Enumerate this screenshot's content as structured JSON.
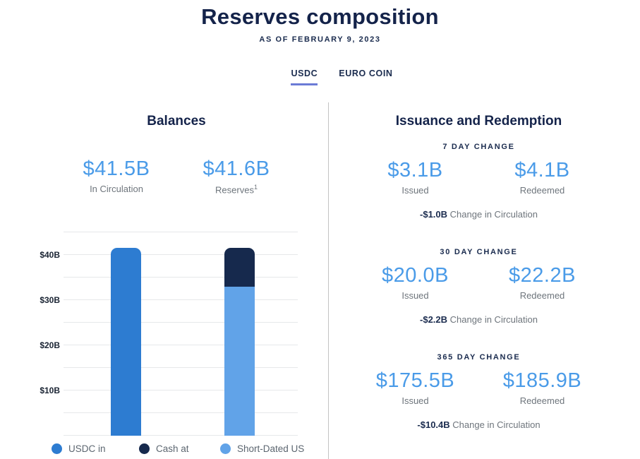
{
  "page": {
    "title": "Reserves composition",
    "as_of": "AS OF FEBRUARY 9, 2023"
  },
  "tabs": [
    {
      "label": "USDC",
      "active": true
    },
    {
      "label": "EURO COIN",
      "active": false
    }
  ],
  "balances": {
    "heading": "Balances",
    "stats": [
      {
        "value": "$41.5B",
        "label": "In Circulation"
      },
      {
        "value": "$41.6B",
        "label": "Reserves",
        "footnote": "1"
      }
    ]
  },
  "issuance": {
    "heading": "Issuance and Redemption",
    "sections": [
      {
        "header": "7 DAY CHANGE",
        "issued_value": "$3.1B",
        "issued_label": "Issued",
        "redeemed_value": "$4.1B",
        "redeemed_label": "Redeemed",
        "change_value": "-$1.0B",
        "change_label": "Change in Circulation"
      },
      {
        "header": "30 DAY CHANGE",
        "issued_value": "$20.0B",
        "issued_label": "Issued",
        "redeemed_value": "$22.2B",
        "redeemed_label": "Redeemed",
        "change_value": "-$2.2B",
        "change_label": "Change in Circulation"
      },
      {
        "header": "365 DAY CHANGE",
        "issued_value": "$175.5B",
        "issued_label": "Issued",
        "redeemed_value": "$185.9B",
        "redeemed_label": "Redeemed",
        "change_value": "-$10.4B",
        "change_label": "Change in Circulation"
      }
    ]
  },
  "chart_data": {
    "type": "bar",
    "stacked": true,
    "title": "",
    "xlabel": "",
    "ylabel": "",
    "ylim": [
      0,
      45
    ],
    "grid_step": 5,
    "grid": true,
    "legend_position": "bottom",
    "yticks": [
      {
        "value": 10,
        "label": "$10B"
      },
      {
        "value": 20,
        "label": "$20B"
      },
      {
        "value": 30,
        "label": "$30B"
      },
      {
        "value": 40,
        "label": "$40B"
      }
    ],
    "bars": [
      {
        "name": "circulation",
        "segments": [
          {
            "series": "USDC in",
            "value": 41.5,
            "color": "#2d7cd1"
          }
        ]
      },
      {
        "name": "reserves",
        "segments": [
          {
            "series": "Short-Dated US",
            "value": 33.0,
            "color": "#61a3e8"
          },
          {
            "series": "Cash at",
            "value": 8.6,
            "color": "#16294d"
          }
        ]
      }
    ],
    "legend": [
      {
        "label": "USDC in",
        "color": "#2d7cd1"
      },
      {
        "label": "Cash at",
        "color": "#16294d"
      },
      {
        "label": "Short-Dated US",
        "color": "#61a3e8"
      }
    ]
  },
  "colors": {
    "accent_blue": "#4a9be8",
    "navy": "#1a2b4e",
    "tab_underline": "#6b7bd6"
  }
}
